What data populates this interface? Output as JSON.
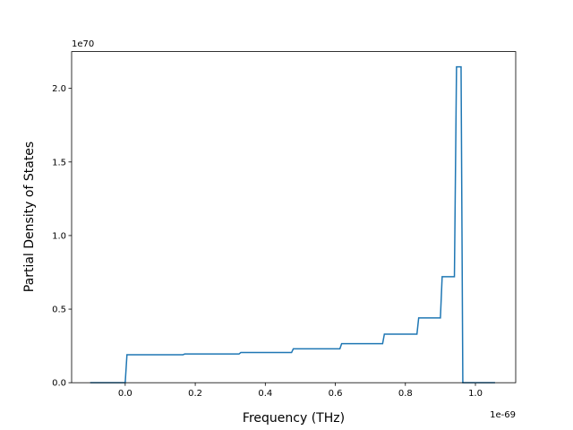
{
  "chart_data": {
    "type": "line",
    "x_label": "Frequency (THz)",
    "y_label": "Partial Density of States",
    "x_offset_text": "1e-69",
    "y_offset_text": "1e70",
    "xlim": [
      -0.153,
      1.115
    ],
    "ylim": [
      0,
      2.25
    ],
    "xticks": [
      {
        "value": 0,
        "label": "0.0"
      },
      0.2,
      0.4,
      0.6,
      0.8,
      {
        "value": 1,
        "label": "1.0"
      }
    ],
    "yticks": [
      {
        "value": 0,
        "label": "0.0"
      },
      0.5,
      {
        "value": 1,
        "label": "1.0"
      },
      1.5,
      {
        "value": 2,
        "label": "2.0"
      }
    ],
    "grid": false,
    "series": [
      {
        "color": "#1f77b4",
        "x": [
          -0.1,
          0,
          0.005,
          0.165,
          0.17,
          0.325,
          0.33,
          0.475,
          0.48,
          0.613,
          0.618,
          0.735,
          0.74,
          0.833,
          0.838,
          0.9,
          0.905,
          0.94,
          0.946,
          0.959,
          0.964,
          1.056
        ],
        "values": [
          0,
          0,
          0.19,
          0.19,
          0.195,
          0.195,
          0.205,
          0.205,
          0.23,
          0.23,
          0.265,
          0.265,
          0.33,
          0.33,
          0.44,
          0.44,
          0.72,
          0.72,
          2.146,
          2.146,
          0,
          0
        ]
      }
    ]
  }
}
